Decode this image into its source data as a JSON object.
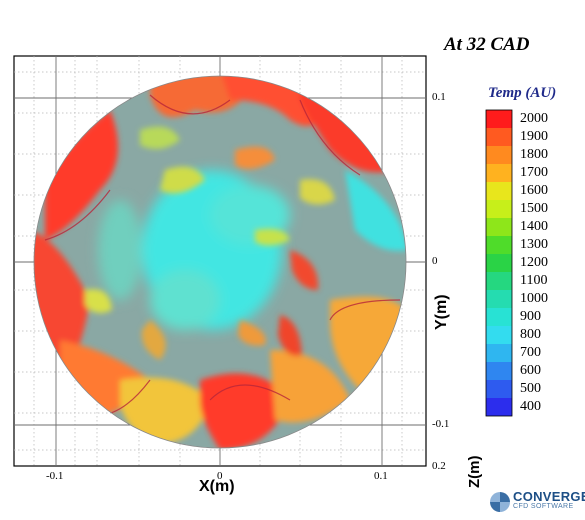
{
  "title": "At 32 CAD",
  "legend": {
    "title": "Temp (AU)",
    "levels": [
      "2000",
      "1900",
      "1800",
      "1700",
      "1600",
      "1500",
      "1400",
      "1300",
      "1200",
      "1100",
      "1000",
      "900",
      "800",
      "700",
      "600",
      "500",
      "400"
    ],
    "colors": [
      "#ff1c1c",
      "#ff5a20",
      "#ff8a1f",
      "#ffb21f",
      "#e8e61c",
      "#c7ef1a",
      "#8ee61a",
      "#4fdc2a",
      "#2ad346",
      "#25d780",
      "#25dcb0",
      "#28e2d4",
      "#33dcef",
      "#2fb6f0",
      "#2f86f0",
      "#2e5bef",
      "#2c2ded"
    ]
  },
  "axes": {
    "x_label": "X(m)",
    "y_label": "Y(m)",
    "z_label": "Z(m)",
    "x_ticks": [
      "-0.1",
      "0",
      "0.1"
    ],
    "y_ticks": [
      "0.1",
      "0",
      "-0.1"
    ],
    "z_ticks": [
      "0.2"
    ]
  },
  "logo": {
    "main": "CONVERGE",
    "sub": "CFD SOFTWARE"
  }
}
